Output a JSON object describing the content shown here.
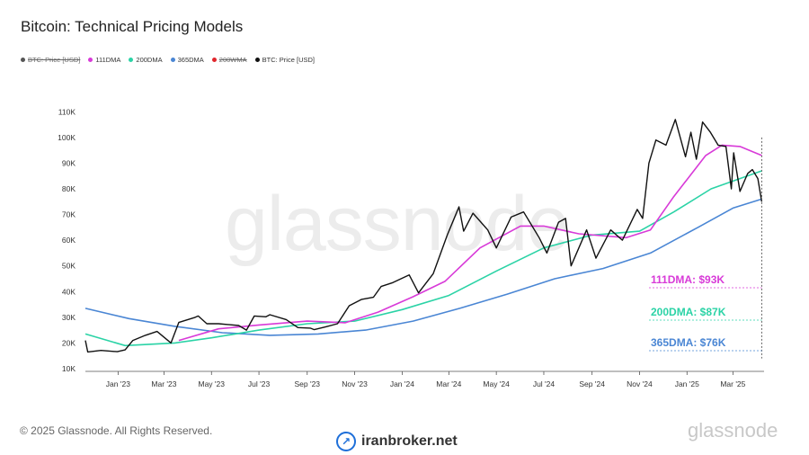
{
  "title": "Bitcoin: Technical Pricing Models",
  "legend": [
    {
      "label": "BTC: Price [USD]",
      "color": "#555555",
      "hidden": true
    },
    {
      "label": "111DMA",
      "color": "#d83ad8",
      "hidden": false
    },
    {
      "label": "200DMA",
      "color": "#2bd3a6",
      "hidden": false
    },
    {
      "label": "365DMA",
      "color": "#4a86d4",
      "hidden": false
    },
    {
      "label": "200WMA",
      "color": "#e0262c",
      "hidden": true
    },
    {
      "label": "BTC: Price [USD]",
      "color": "#111111",
      "hidden": false
    }
  ],
  "watermark": "glassnode",
  "footer": {
    "copyright": "© 2025 Glassnode. All Rights Reserved.",
    "logo": "glassnode",
    "broker": "iranbroker.net"
  },
  "chart_data": {
    "type": "line",
    "title": "Bitcoin: Technical Pricing Models",
    "x_ticks": [
      "Jan '23",
      "Mar '23",
      "May '23",
      "Jul '23",
      "Sep '23",
      "Nov '23",
      "Jan '24",
      "Mar '24",
      "May '24",
      "Jul '24",
      "Sep '24",
      "Nov '24",
      "Jan '25",
      "Mar '25"
    ],
    "y_ticks": [
      "10K",
      "20K",
      "30K",
      "40K",
      "50K",
      "60K",
      "70K",
      "80K",
      "90K",
      "100K",
      "110K"
    ],
    "ylim": [
      10000,
      115000
    ],
    "xlim": [
      "2022-11-20",
      "2025-04-10"
    ],
    "grid": false,
    "legend_position": "top-left",
    "annotations": [
      {
        "label": "111DMA: $93K",
        "value": 93000,
        "color": "#d83ad8"
      },
      {
        "label": "200DMA: $87K",
        "value": 87000,
        "color": "#2bd3a6"
      },
      {
        "label": "365DMA: $76K",
        "value": 76000,
        "color": "#4a86d4"
      }
    ],
    "series": [
      {
        "name": "BTC: Price [USD]",
        "color": "#111111",
        "points": [
          [
            "2022-11-20",
            21000
          ],
          [
            "2022-11-23",
            16500
          ],
          [
            "2022-12-10",
            17100
          ],
          [
            "2022-12-31",
            16600
          ],
          [
            "2023-01-10",
            17300
          ],
          [
            "2023-01-20",
            21000
          ],
          [
            "2023-02-05",
            23000
          ],
          [
            "2023-02-20",
            24500
          ],
          [
            "2023-03-10",
            20000
          ],
          [
            "2023-03-20",
            28000
          ],
          [
            "2023-04-10",
            30000
          ],
          [
            "2023-04-14",
            30500
          ],
          [
            "2023-04-25",
            27500
          ],
          [
            "2023-05-10",
            27500
          ],
          [
            "2023-06-05",
            26800
          ],
          [
            "2023-06-15",
            25000
          ],
          [
            "2023-06-25",
            30500
          ],
          [
            "2023-07-10",
            30200
          ],
          [
            "2023-07-15",
            31000
          ],
          [
            "2023-08-05",
            29100
          ],
          [
            "2023-08-20",
            26000
          ],
          [
            "2023-09-05",
            25800
          ],
          [
            "2023-09-10",
            25200
          ],
          [
            "2023-09-25",
            26300
          ],
          [
            "2023-10-10",
            27500
          ],
          [
            "2023-10-25",
            34500
          ],
          [
            "2023-11-10",
            37000
          ],
          [
            "2023-11-25",
            37800
          ],
          [
            "2023-12-05",
            42000
          ],
          [
            "2023-12-20",
            43500
          ],
          [
            "2024-01-10",
            46500
          ],
          [
            "2024-01-22",
            39500
          ],
          [
            "2024-02-10",
            47000
          ],
          [
            "2024-02-28",
            62000
          ],
          [
            "2024-03-14",
            73000
          ],
          [
            "2024-03-20",
            63500
          ],
          [
            "2024-04-01",
            70500
          ],
          [
            "2024-04-20",
            64000
          ],
          [
            "2024-05-01",
            57000
          ],
          [
            "2024-05-20",
            69000
          ],
          [
            "2024-06-05",
            71000
          ],
          [
            "2024-06-25",
            61000
          ],
          [
            "2024-07-05",
            55000
          ],
          [
            "2024-07-20",
            67000
          ],
          [
            "2024-07-29",
            68500
          ],
          [
            "2024-08-05",
            50000
          ],
          [
            "2024-08-25",
            64000
          ],
          [
            "2024-09-06",
            53000
          ],
          [
            "2024-09-25",
            64000
          ],
          [
            "2024-10-10",
            60000
          ],
          [
            "2024-10-29",
            72000
          ],
          [
            "2024-11-05",
            68500
          ],
          [
            "2024-11-13",
            90000
          ],
          [
            "2024-11-22",
            99000
          ],
          [
            "2024-12-05",
            97000
          ],
          [
            "2024-12-17",
            107000
          ],
          [
            "2024-12-30",
            92500
          ],
          [
            "2025-01-06",
            102000
          ],
          [
            "2025-01-13",
            91500
          ],
          [
            "2025-01-21",
            106000
          ],
          [
            "2025-01-31",
            102000
          ],
          [
            "2025-02-10",
            97000
          ],
          [
            "2025-02-20",
            96500
          ],
          [
            "2025-02-27",
            80000
          ],
          [
            "2025-03-02",
            94000
          ],
          [
            "2025-03-10",
            79000
          ],
          [
            "2025-03-20",
            86000
          ],
          [
            "2025-03-26",
            87500
          ],
          [
            "2025-04-02",
            84000
          ],
          [
            "2025-04-07",
            75000
          ]
        ]
      },
      {
        "name": "111DMA",
        "color": "#d83ad8",
        "points": [
          [
            "2023-03-20",
            21000
          ],
          [
            "2023-05-10",
            25500
          ],
          [
            "2023-07-01",
            27000
          ],
          [
            "2023-09-01",
            28500
          ],
          [
            "2023-10-20",
            27900
          ],
          [
            "2023-12-01",
            32000
          ],
          [
            "2024-01-15",
            38000
          ],
          [
            "2024-02-25",
            44000
          ],
          [
            "2024-04-10",
            57000
          ],
          [
            "2024-06-01",
            65500
          ],
          [
            "2024-07-01",
            65500
          ],
          [
            "2024-08-15",
            62500
          ],
          [
            "2024-10-15",
            61000
          ],
          [
            "2024-11-15",
            64000
          ],
          [
            "2024-12-15",
            77000
          ],
          [
            "2025-01-25",
            93000
          ],
          [
            "2025-02-15",
            97000
          ],
          [
            "2025-03-10",
            96500
          ],
          [
            "2025-04-07",
            93000
          ]
        ]
      },
      {
        "name": "200DMA",
        "color": "#2bd3a6",
        "points": [
          [
            "2022-11-20",
            23500
          ],
          [
            "2023-01-10",
            19000
          ],
          [
            "2023-03-15",
            20000
          ],
          [
            "2023-05-01",
            22000
          ],
          [
            "2023-07-01",
            25000
          ],
          [
            "2023-09-01",
            27500
          ],
          [
            "2023-11-01",
            28500
          ],
          [
            "2024-01-01",
            33000
          ],
          [
            "2024-03-01",
            38500
          ],
          [
            "2024-05-01",
            48000
          ],
          [
            "2024-07-01",
            57000
          ],
          [
            "2024-09-01",
            62000
          ],
          [
            "2024-11-01",
            63500
          ],
          [
            "2024-12-15",
            71000
          ],
          [
            "2025-02-01",
            80000
          ],
          [
            "2025-04-07",
            87000
          ]
        ]
      },
      {
        "name": "365DMA",
        "color": "#4a86d4",
        "points": [
          [
            "2022-11-20",
            33500
          ],
          [
            "2023-01-15",
            29500
          ],
          [
            "2023-03-15",
            26500
          ],
          [
            "2023-05-15",
            24000
          ],
          [
            "2023-07-15",
            23000
          ],
          [
            "2023-09-15",
            23500
          ],
          [
            "2023-11-15",
            25000
          ],
          [
            "2024-01-15",
            28500
          ],
          [
            "2024-03-15",
            33500
          ],
          [
            "2024-05-15",
            39000
          ],
          [
            "2024-07-15",
            45000
          ],
          [
            "2024-09-15",
            49000
          ],
          [
            "2024-11-15",
            55000
          ],
          [
            "2025-01-15",
            65000
          ],
          [
            "2025-03-01",
            72500
          ],
          [
            "2025-04-07",
            76000
          ]
        ]
      }
    ]
  }
}
